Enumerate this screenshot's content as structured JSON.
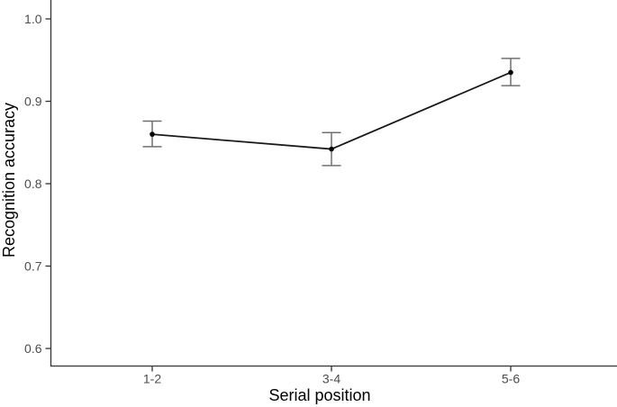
{
  "chart_data": {
    "type": "line",
    "title": "",
    "xlabel": "Serial position",
    "ylabel": "Recognition accuracy",
    "categories": [
      "1-2",
      "3-4",
      "5-6"
    ],
    "series": [
      {
        "name": "Recognition accuracy",
        "values": [
          0.86,
          0.842,
          0.935
        ],
        "error_upper": [
          0.876,
          0.862,
          0.952
        ],
        "error_lower": [
          0.845,
          0.822,
          0.919
        ]
      }
    ],
    "ylim": [
      0.6,
      1.0
    ],
    "yticks": [
      0.6,
      0.7,
      0.8,
      0.9,
      1.0
    ],
    "ytick_labels": [
      "0.6",
      "0.7",
      "0.8",
      "0.9",
      "1.0"
    ],
    "grid": false,
    "legend": "none",
    "marker": "filled-circle",
    "error_bar_style": "capped",
    "colors": {
      "background": "#ffffff",
      "line": "#1a1a1a",
      "marker": "#000000",
      "error_bar": "#707070",
      "axis_line": "#333333",
      "tick_label": "#4d4d4d",
      "axis_title": "#000000"
    }
  }
}
